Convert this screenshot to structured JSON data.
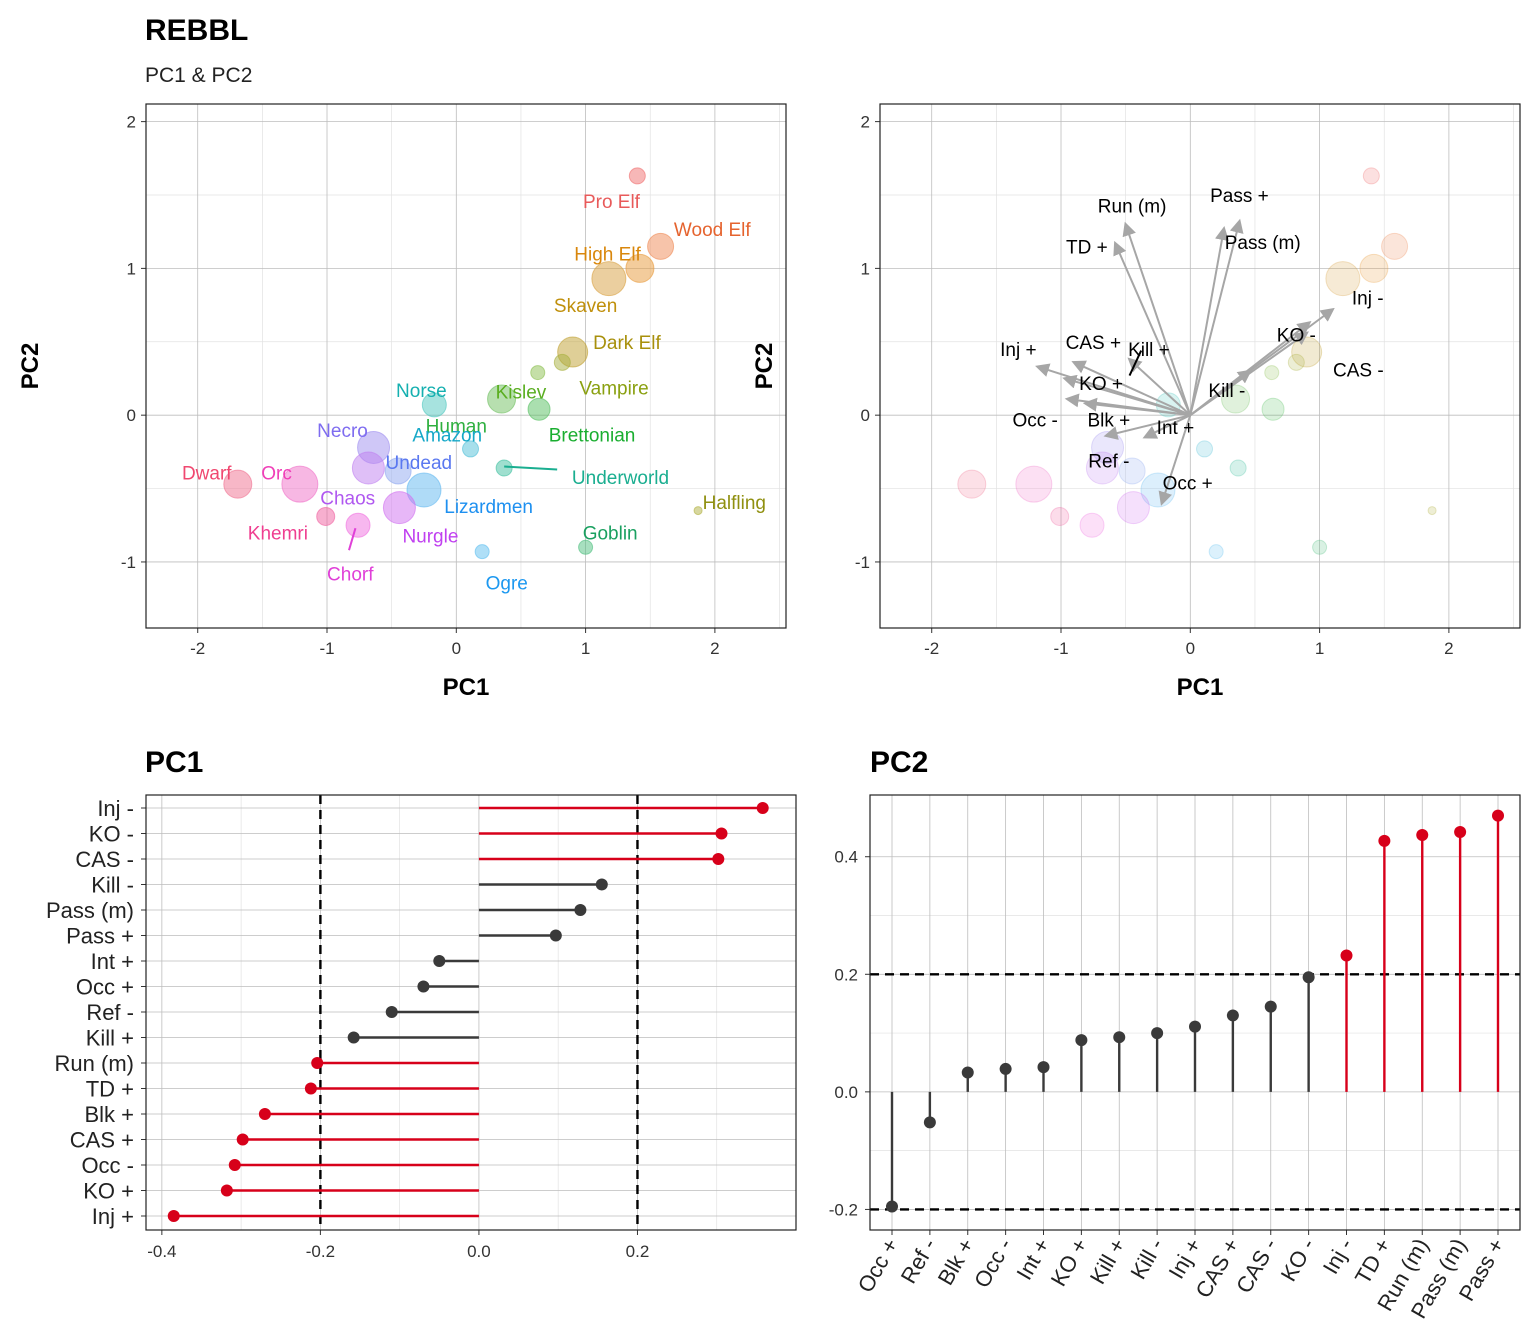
{
  "header": {
    "title": "REBBL",
    "subtitle": "PC1 & PC2"
  },
  "colors": {
    "vector": "#a6a6a6",
    "highlight": "#d7001a",
    "normal": "#3a3a3a"
  },
  "chart_data": [
    {
      "type": "scatter",
      "xlabel": "PC1",
      "ylabel": "PC2",
      "xlim": [
        -2.4,
        2.55
      ],
      "ylim": [
        -1.45,
        2.12
      ],
      "xticks": [
        -2,
        -1,
        0,
        1,
        2
      ],
      "yticks": [
        -1,
        0,
        1,
        2
      ],
      "points": [
        {
          "name": "Pro Elf",
          "x": 1.4,
          "y": 1.63,
          "size": 8,
          "color": "#f07070"
        },
        {
          "name": "Wood Elf",
          "x": 1.58,
          "y": 1.15,
          "size": 13,
          "color": "#ef8a55"
        },
        {
          "name": "High Elf",
          "x": 1.42,
          "y": 1.0,
          "size": 14,
          "color": "#e89a3a"
        },
        {
          "name": "Skaven",
          "x": 1.18,
          "y": 0.93,
          "size": 17,
          "color": "#d8a040"
        },
        {
          "name": "Dark Elf",
          "x": 0.9,
          "y": 0.43,
          "size": 15,
          "color": "#c0a030"
        },
        {
          "name": "Vampire",
          "x": 0.82,
          "y": 0.36,
          "size": 8,
          "color": "#a8b040"
        },
        {
          "name": "Kislev",
          "x": 0.63,
          "y": 0.29,
          "size": 7,
          "color": "#8cc050"
        },
        {
          "name": "Human",
          "x": 0.35,
          "y": 0.11,
          "size": 14,
          "color": "#70c060"
        },
        {
          "name": "Brettonian",
          "x": 0.64,
          "y": 0.04,
          "size": 11,
          "color": "#55c060"
        },
        {
          "name": "Norse",
          "x": -0.17,
          "y": 0.07,
          "size": 12,
          "color": "#50c8c0"
        },
        {
          "name": "Amazon",
          "x": 0.11,
          "y": -0.23,
          "size": 8,
          "color": "#50c0d8"
        },
        {
          "name": "Underworld",
          "x": 0.37,
          "y": -0.36,
          "size": 8,
          "color": "#40c0a0"
        },
        {
          "name": "Necro",
          "x": -0.64,
          "y": -0.22,
          "size": 16,
          "color": "#a090f0"
        },
        {
          "name": "Undead",
          "x": -0.45,
          "y": -0.38,
          "size": 13,
          "color": "#8fa8f0"
        },
        {
          "name": "Chaos",
          "x": -0.68,
          "y": -0.36,
          "size": 16,
          "color": "#c080f0"
        },
        {
          "name": "Lizardmen",
          "x": -0.25,
          "y": -0.51,
          "size": 17,
          "color": "#60b8f0"
        },
        {
          "name": "Nurgle",
          "x": -0.44,
          "y": -0.63,
          "size": 16,
          "color": "#d070f0"
        },
        {
          "name": "Dwarf",
          "x": -1.69,
          "y": -0.47,
          "size": 14,
          "color": "#f07090"
        },
        {
          "name": "Orc",
          "x": -1.21,
          "y": -0.47,
          "size": 18,
          "color": "#f070c8"
        },
        {
          "name": "Khemri",
          "x": -1.01,
          "y": -0.69,
          "size": 9,
          "color": "#f060a0"
        },
        {
          "name": "Chorf",
          "x": -0.76,
          "y": -0.75,
          "size": 12,
          "color": "#f070e0"
        },
        {
          "name": "Ogre",
          "x": 0.2,
          "y": -0.93,
          "size": 7,
          "color": "#60c0f0"
        },
        {
          "name": "Goblin",
          "x": 1.0,
          "y": -0.9,
          "size": 7,
          "color": "#50c080"
        },
        {
          "name": "Halfling",
          "x": 1.87,
          "y": -0.65,
          "size": 4,
          "color": "#b0b040"
        }
      ]
    },
    {
      "type": "scatter",
      "xlabel": "PC1",
      "ylabel": "PC2",
      "xlim": [
        -2.4,
        2.55
      ],
      "ylim": [
        -1.45,
        2.12
      ],
      "xticks": [
        -2,
        -1,
        0,
        1,
        2
      ],
      "yticks": [
        -1,
        0,
        1,
        2
      ],
      "vectors": [
        {
          "label": "Run (m)",
          "x": -0.5,
          "y": 1.3
        },
        {
          "label": "Pass +",
          "x": 0.38,
          "y": 1.32
        },
        {
          "label": "TD +",
          "x": -0.58,
          "y": 1.17
        },
        {
          "label": "Pass (m)",
          "x": 0.26,
          "y": 1.27
        },
        {
          "label": "Inj -",
          "x": 1.1,
          "y": 0.72
        },
        {
          "label": "KO -",
          "x": 0.92,
          "y": 0.63
        },
        {
          "label": "CAS -",
          "x": 0.9,
          "y": 0.56
        },
        {
          "label": "Kill -",
          "x": 0.46,
          "y": 0.3
        },
        {
          "label": "Inj +",
          "x": -1.18,
          "y": 0.33
        },
        {
          "label": "CAS +",
          "x": -0.9,
          "y": 0.36
        },
        {
          "label": "Kill +",
          "x": -0.47,
          "y": 0.38
        },
        {
          "label": "KO +",
          "x": -0.97,
          "y": 0.25
        },
        {
          "label": "Occ -",
          "x": -0.95,
          "y": 0.11
        },
        {
          "label": "Blk +",
          "x": -0.81,
          "y": 0.08
        },
        {
          "label": "Int +",
          "x": -0.35,
          "y": -0.15
        },
        {
          "label": "Ref -",
          "x": -0.65,
          "y": -0.14
        },
        {
          "label": "Occ +",
          "x": -0.22,
          "y": -0.6
        }
      ]
    },
    {
      "type": "lollipop",
      "title": "PC1",
      "xlim": [
        -0.42,
        0.4
      ],
      "xticks": [
        "-0.4",
        "-0.2",
        "0.0",
        "0.2"
      ],
      "threshold": 0.2,
      "items": [
        {
          "label": "Inj -",
          "value": 0.358
        },
        {
          "label": "KO -",
          "value": 0.306
        },
        {
          "label": "CAS -",
          "value": 0.302
        },
        {
          "label": "Kill -",
          "value": 0.155
        },
        {
          "label": "Pass (m)",
          "value": 0.128
        },
        {
          "label": "Pass +",
          "value": 0.097
        },
        {
          "label": "Int +",
          "value": -0.05
        },
        {
          "label": "Occ +",
          "value": -0.07
        },
        {
          "label": "Ref -",
          "value": -0.11
        },
        {
          "label": "Kill +",
          "value": -0.158
        },
        {
          "label": "Run (m)",
          "value": -0.204
        },
        {
          "label": "TD +",
          "value": -0.212
        },
        {
          "label": "Blk +",
          "value": -0.27
        },
        {
          "label": "CAS +",
          "value": -0.298
        },
        {
          "label": "Occ -",
          "value": -0.308
        },
        {
          "label": "KO +",
          "value": -0.318
        },
        {
          "label": "Inj +",
          "value": -0.385
        }
      ]
    },
    {
      "type": "lollipop",
      "title": "PC2",
      "ylim": [
        -0.235,
        0.505
      ],
      "yticks": [
        "-0.2",
        "0.0",
        "0.2",
        "0.4"
      ],
      "threshold": 0.2,
      "items": [
        {
          "label": "Occ +",
          "value": -0.195
        },
        {
          "label": "Ref -",
          "value": -0.052
        },
        {
          "label": "Blk +",
          "value": 0.033
        },
        {
          "label": "Occ -",
          "value": 0.039
        },
        {
          "label": "Int +",
          "value": 0.042
        },
        {
          "label": "KO +",
          "value": 0.088
        },
        {
          "label": "Kill +",
          "value": 0.093
        },
        {
          "label": "Kill -",
          "value": 0.1
        },
        {
          "label": "Inj +",
          "value": 0.111
        },
        {
          "label": "CAS +",
          "value": 0.13
        },
        {
          "label": "CAS -",
          "value": 0.145
        },
        {
          "label": "KO -",
          "value": 0.195
        },
        {
          "label": "Inj -",
          "value": 0.232
        },
        {
          "label": "TD +",
          "value": 0.427
        },
        {
          "label": "Run (m)",
          "value": 0.437
        },
        {
          "label": "Pass (m)",
          "value": 0.442
        },
        {
          "label": "Pass +",
          "value": 0.47
        }
      ]
    }
  ]
}
